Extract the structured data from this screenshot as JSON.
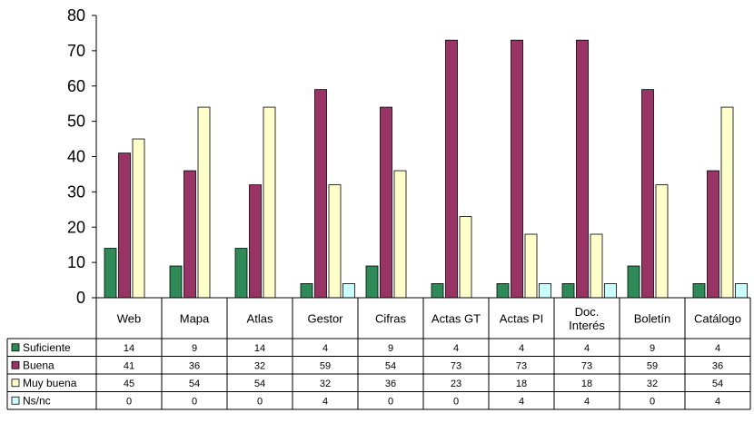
{
  "chart_data": {
    "type": "bar",
    "categories": [
      [
        "Web"
      ],
      [
        "Mapa"
      ],
      [
        "Atlas"
      ],
      [
        "Gestor"
      ],
      [
        "Cifras"
      ],
      [
        "Actas GT"
      ],
      [
        "Actas PI"
      ],
      [
        "Doc.",
        "Interés"
      ],
      [
        "Boletín"
      ],
      [
        "Catálogo"
      ]
    ],
    "series": [
      {
        "name": "Suficiente",
        "values": [
          14,
          9,
          14,
          4,
          9,
          4,
          4,
          4,
          9,
          4
        ],
        "color": "#2e8b57"
      },
      {
        "name": "Buena",
        "values": [
          41,
          36,
          32,
          59,
          54,
          73,
          73,
          73,
          59,
          36
        ],
        "color": "#993366"
      },
      {
        "name": "Muy buena",
        "values": [
          45,
          54,
          54,
          32,
          36,
          23,
          18,
          18,
          32,
          54
        ],
        "color": "#ffffcc"
      },
      {
        "name": "Ns/nc",
        "values": [
          0,
          0,
          0,
          4,
          0,
          0,
          4,
          4,
          0,
          4
        ],
        "color": "#ccffff"
      }
    ],
    "ylim": [
      0,
      80
    ],
    "yticks": [
      0,
      10,
      20,
      30,
      40,
      50,
      60,
      70,
      80
    ],
    "grid": false,
    "legend": "data-table"
  }
}
